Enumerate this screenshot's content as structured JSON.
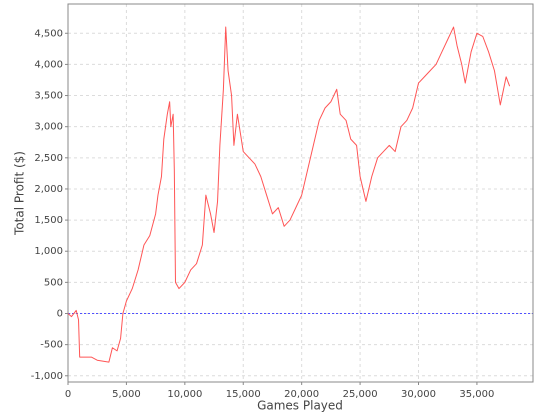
{
  "chart_data": {
    "type": "line",
    "xlabel": "Games Played",
    "ylabel": "Total Profit ($)",
    "x": [
      0,
      300,
      700,
      900,
      1000,
      2000,
      2500,
      3500,
      3800,
      4200,
      4500,
      4700,
      5000,
      5500,
      6000,
      6500,
      7000,
      7500,
      7700,
      8000,
      8200,
      8500,
      8700,
      8800,
      9000,
      9100,
      9200,
      9500,
      10000,
      10500,
      11000,
      11500,
      11800,
      12200,
      12500,
      12800,
      13000,
      13300,
      13500,
      13700,
      14000,
      14200,
      14500,
      15000,
      15500,
      16000,
      16500,
      17000,
      17500,
      18000,
      18500,
      19000,
      19500,
      20000,
      20500,
      21000,
      21500,
      22000,
      22500,
      23000,
      23300,
      23800,
      24200,
      24700,
      25000,
      25500,
      26000,
      26500,
      27000,
      27500,
      28000,
      28500,
      29000,
      29500,
      30000,
      30500,
      31000,
      31500,
      32000,
      32500,
      33000,
      33300,
      33700,
      34000,
      34500,
      35000,
      35500,
      36000,
      36500,
      37000,
      37500,
      37800
    ],
    "values": [
      0,
      -50,
      50,
      -100,
      -700,
      -700,
      -750,
      -780,
      -550,
      -600,
      -400,
      0,
      200,
      400,
      700,
      1100,
      1250,
      1600,
      1900,
      2200,
      2800,
      3200,
      3400,
      3000,
      3200,
      2300,
      500,
      400,
      500,
      700,
      800,
      1100,
      1900,
      1600,
      1300,
      1800,
      2700,
      3600,
      4600,
      3900,
      3500,
      2700,
      3200,
      2600,
      2500,
      2400,
      2200,
      1900,
      1600,
      1700,
      1400,
      1500,
      1700,
      1900,
      2300,
      2700,
      3100,
      3300,
      3400,
      3600,
      3200,
      3100,
      2800,
      2700,
      2200,
      1800,
      2200,
      2500,
      2600,
      2700,
      2600,
      3000,
      3100,
      3300,
      3700,
      3800,
      3900,
      4000,
      4200,
      4400,
      4600,
      4300,
      4000,
      3700,
      4200,
      4500,
      4450,
      4200,
      3900,
      3350,
      3800,
      3650
    ],
    "color": "#ff5555",
    "xlim": [
      0,
      39800
    ],
    "ylim": [
      -1100,
      4970
    ],
    "xticks": [
      0,
      {
        "value": 5000,
        "label": "5,000"
      },
      {
        "value": 10000,
        "label": "10,000"
      },
      {
        "value": 15000,
        "label": "15,000"
      },
      {
        "value": 20000,
        "label": "20,000"
      },
      {
        "value": 25000,
        "label": "25,000"
      },
      {
        "value": 30000,
        "label": "30,000"
      },
      {
        "value": 35000,
        "label": "35,000"
      }
    ],
    "yticks": [
      {
        "value": -1000,
        "label": "-1,000"
      },
      -500,
      0,
      500,
      {
        "value": 1000,
        "label": "1,000"
      },
      {
        "value": 1500,
        "label": "1,500"
      },
      {
        "value": 2000,
        "label": "2,000"
      },
      {
        "value": 2500,
        "label": "2,500"
      },
      {
        "value": 3000,
        "label": "3,000"
      },
      {
        "value": 3500,
        "label": "3,500"
      },
      {
        "value": 4000,
        "label": "4,000"
      },
      {
        "value": 4500,
        "label": "4,500"
      }
    ],
    "grid": true,
    "zero_line": true
  }
}
